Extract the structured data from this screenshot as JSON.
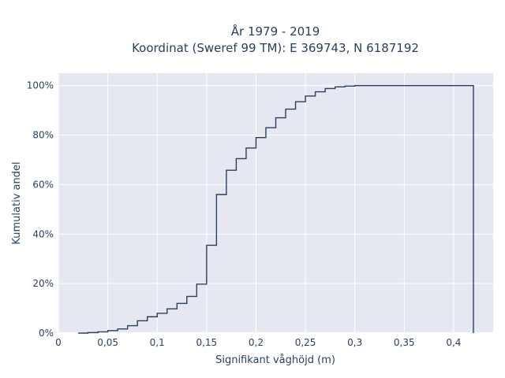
{
  "chart_data": {
    "type": "line",
    "title_line1": "År 1979 - 2019",
    "title_line2": "Koordinat (Sweref 99 TM): E 369743, N 6187192",
    "xlabel": "Signifikant våghöjd (m)",
    "ylabel": "Kumulativ andel",
    "xlim": [
      0,
      0.44
    ],
    "ylim": [
      0,
      1.05
    ],
    "xticks": [
      0,
      0.05,
      0.1,
      0.15,
      0.2,
      0.25,
      0.3,
      0.35,
      0.4
    ],
    "xtick_labels": [
      "0",
      "0,05",
      "0,1",
      "0,15",
      "0,2",
      "0,25",
      "0,3",
      "0,35",
      "0,4"
    ],
    "yticks": [
      0,
      0.2,
      0.4,
      0.6,
      0.8,
      1.0
    ],
    "ytick_labels": [
      "0%",
      "20%",
      "40%",
      "60%",
      "80%",
      "100%"
    ],
    "grid": true,
    "line_color": "#2a3f5f",
    "plot_bg": "#e5e8f1",
    "series": [
      {
        "step": "hv",
        "x": [
          0.02,
          0.03,
          0.04,
          0.05,
          0.06,
          0.07,
          0.08,
          0.09,
          0.1,
          0.11,
          0.12,
          0.13,
          0.14,
          0.15,
          0.16,
          0.17,
          0.18,
          0.19,
          0.2,
          0.21,
          0.22,
          0.23,
          0.24,
          0.25,
          0.26,
          0.27,
          0.28,
          0.29,
          0.3,
          0.42,
          0.42
        ],
        "y": [
          0.0,
          0.002,
          0.005,
          0.01,
          0.017,
          0.03,
          0.05,
          0.066,
          0.08,
          0.098,
          0.12,
          0.148,
          0.198,
          0.355,
          0.56,
          0.658,
          0.705,
          0.748,
          0.79,
          0.83,
          0.87,
          0.905,
          0.935,
          0.958,
          0.975,
          0.988,
          0.995,
          0.998,
          1.0,
          1.0,
          0.0
        ]
      }
    ]
  }
}
